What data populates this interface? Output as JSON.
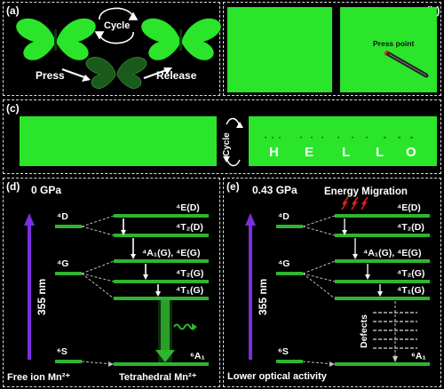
{
  "panels": {
    "a": {
      "label": "(a)",
      "cycle": "Cycle",
      "press": "Press",
      "release": "Release"
    },
    "b": {
      "label": "(b)",
      "press_point": "Press point"
    },
    "c": {
      "label": "(c)",
      "cycle": "Cycle",
      "letters": [
        "H",
        "E",
        "L",
        "L",
        "O"
      ]
    },
    "d": {
      "label": "(d)",
      "pressure": "0 GPa",
      "excitation": "355 nm",
      "left_levels": [
        "⁴D",
        "⁴G",
        "⁶S"
      ],
      "right_levels": [
        "⁴E(D)",
        "⁴T₂(D)",
        "⁴A₁(G), ⁴E(G)",
        "⁴T₂(G)",
        "⁴T₁(G)",
        "⁶A₁"
      ],
      "bottom_left": "Free ion Mn²⁺",
      "bottom_right": "Tetrahedral Mn²⁺"
    },
    "e": {
      "label": "(e)",
      "pressure": "0.43 GPa",
      "excitation": "355 nm",
      "energy_migration": "Energy Migration",
      "left_levels": [
        "⁴D",
        "⁴G",
        "⁶S"
      ],
      "right_levels": [
        "⁴E(D)",
        "⁴T₂(D)",
        "⁴A₁(G), ⁴E(G)",
        "⁴T₂(G)",
        "⁴T₁(G)",
        "⁶A₁"
      ],
      "defects": "Defects",
      "bottom": "Lower optical activity"
    }
  },
  "colors": {
    "green": "#2be52b",
    "level": "#2fb52f",
    "purple": "#7a2ee0",
    "red": "#e02020"
  }
}
